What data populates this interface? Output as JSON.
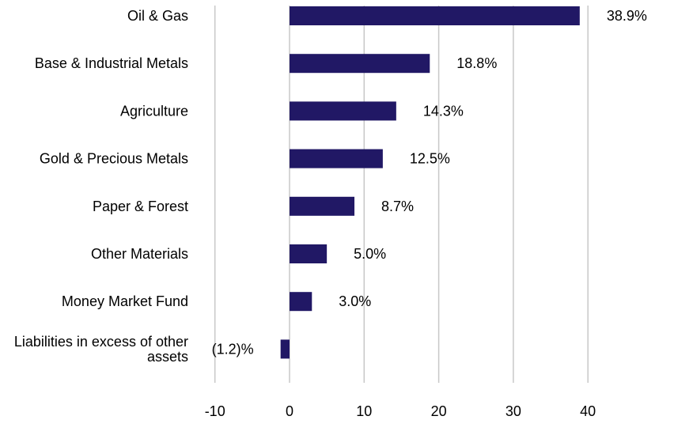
{
  "chart_data": {
    "type": "bar",
    "orientation": "horizontal",
    "categories": [
      "Oil & Gas",
      "Base & Industrial Metals",
      "Agriculture",
      "Gold & Precious Metals",
      "Paper & Forest",
      "Other Materials",
      "Money Market Fund",
      "Liabilities in excess of other assets"
    ],
    "category_lines": [
      [
        "Oil & Gas"
      ],
      [
        "Base & Industrial Metals"
      ],
      [
        "Agriculture"
      ],
      [
        "Gold & Precious Metals"
      ],
      [
        "Paper & Forest"
      ],
      [
        "Other Materials"
      ],
      [
        "Money Market Fund"
      ],
      [
        "Liabilities in excess of other",
        "assets"
      ]
    ],
    "values": [
      38.9,
      18.8,
      14.3,
      12.5,
      8.7,
      5.0,
      3.0,
      -1.2
    ],
    "data_labels": [
      "38.9%",
      "18.8%",
      "14.3%",
      "12.5%",
      "8.7%",
      "5.0%",
      "3.0%",
      "(1.2)%"
    ],
    "xticks": [
      -10,
      0,
      10,
      20,
      30,
      40
    ],
    "xtick_labels": [
      "-10",
      "0",
      "10",
      "20",
      "30",
      "40"
    ],
    "xlim": [
      -10,
      50
    ],
    "grid": "vertical",
    "bar_color": "#211865",
    "grid_color": "#c8c8c8"
  }
}
